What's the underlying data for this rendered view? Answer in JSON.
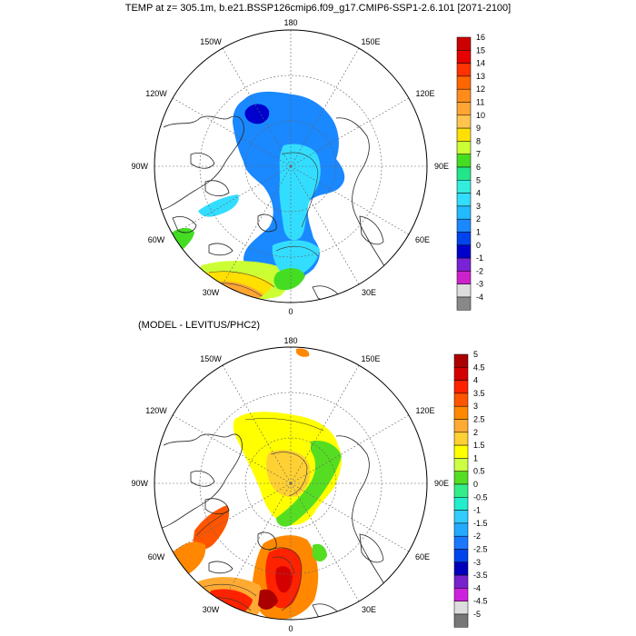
{
  "title": "TEMP at z= 305.1m, b.e21.BSSP126cmip6.f09_g17.CMIP6-SSP1-2.6.101 [2071-2100]",
  "subtitle": "(MODEL - LEVITUS/PHC2)",
  "lon_labels": {
    "top": "180",
    "bottom": "0",
    "left": "90W",
    "right": "90E",
    "ul1": "150W",
    "ul2": "120W",
    "ur1": "150E",
    "ur2": "120E",
    "ll1": "60W",
    "ll2": "30W",
    "lr1": "60E",
    "lr2": "30E"
  },
  "colorbar1": {
    "labels": [
      "16",
      "15",
      "14",
      "13",
      "12",
      "11",
      "10",
      "9",
      "8",
      "7",
      "6",
      "5",
      "4",
      "3",
      "2",
      "1",
      "0",
      "-1",
      "-2",
      "-3",
      "-4"
    ],
    "colors": [
      "#cc0000",
      "#e60000",
      "#ff3300",
      "#ff6600",
      "#ff8c1a",
      "#ffa533",
      "#ffc44d",
      "#ffe000",
      "#ccff33",
      "#44dd22",
      "#22e68a",
      "#33eedd",
      "#33ddff",
      "#22bbff",
      "#1a88ff",
      "#0044ee",
      "#0000cc",
      "#7a22d6",
      "#cc22cc",
      "#dddddd",
      "#888888"
    ]
  },
  "colorbar2": {
    "labels": [
      "5",
      "4.5",
      "4",
      "3.5",
      "3",
      "2.5",
      "2",
      "1.5",
      "1",
      "0.5",
      "0",
      "-0.5",
      "-1",
      "-1.5",
      "-2",
      "-2.5",
      "-3",
      "-3.5",
      "-4",
      "-4.5",
      "-5"
    ],
    "colors": [
      "#aa0000",
      "#d40000",
      "#ff2200",
      "#ff5500",
      "#ff8800",
      "#ffaa33",
      "#ffd033",
      "#ffff00",
      "#ccff44",
      "#55dd22",
      "#33ee88",
      "#22eecc",
      "#33ccff",
      "#22aaff",
      "#1a77ff",
      "#0044ee",
      "#0000bb",
      "#7722cc",
      "#cc22dd",
      "#dddddd",
      "#777777"
    ]
  }
}
